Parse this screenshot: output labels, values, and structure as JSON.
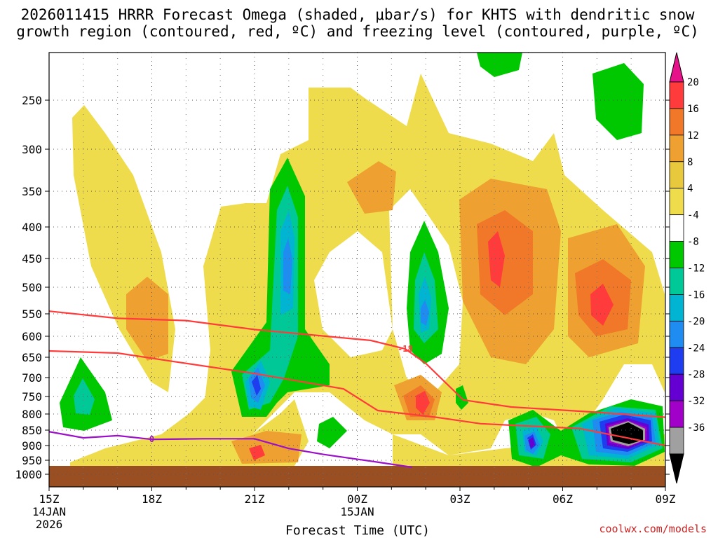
{
  "chart_data": {
    "type": "time-height-contour",
    "title_line1": "2026011415 HRRR Forecast Omega (shaded, μbar/s) for KHTS with dendritic snow",
    "title_line2": "growth region (contoured, red, ºC) and freezing level (contoured, purple, ºC)",
    "xlabel": "Forecast Time (UTC)",
    "credit": "coolwx.com/models",
    "x_hours": [
      15,
      18,
      21,
      24,
      27,
      30,
      33
    ],
    "x_ticks": [
      {
        "hour": 15,
        "label": "15Z",
        "sub1": "14JAN",
        "sub2": "2026"
      },
      {
        "hour": 18,
        "label": "18Z",
        "sub1": "",
        "sub2": ""
      },
      {
        "hour": 21,
        "label": "21Z",
        "sub1": "",
        "sub2": ""
      },
      {
        "hour": 24,
        "label": "00Z",
        "sub1": "15JAN",
        "sub2": ""
      },
      {
        "hour": 27,
        "label": "03Z",
        "sub1": "",
        "sub2": ""
      },
      {
        "hour": 30,
        "label": "06Z",
        "sub1": "",
        "sub2": ""
      },
      {
        "hour": 33,
        "label": "09Z",
        "sub1": "",
        "sub2": ""
      }
    ],
    "y_levels": [
      250,
      300,
      350,
      400,
      450,
      500,
      550,
      600,
      650,
      700,
      750,
      800,
      850,
      900,
      950,
      1000
    ],
    "y_labels": [
      "250",
      "300",
      "350",
      "400",
      "450",
      "500",
      "550",
      "600",
      "650",
      "700",
      "750",
      "800",
      "850",
      "900",
      "950",
      "1000"
    ],
    "ylim": [
      200,
      1000
    ],
    "xlim": [
      15,
      33
    ],
    "surface_pressure": 970,
    "colorbar": {
      "labels": [
        "20",
        "16",
        "12",
        "8",
        "4",
        "-4",
        "-8",
        "-12",
        "-16",
        "-20",
        "-24",
        "-28",
        "-32",
        "-36"
      ],
      "colors": [
        "#e6128a",
        "#ff3b3b",
        "#f07828",
        "#eea030",
        "#e8c83c",
        "#eedc4c",
        "#ffffff",
        "#00c800",
        "#00c896",
        "#00b4d2",
        "#1e8cf0",
        "#1e3cf0",
        "#6400d2",
        "#a000c8",
        "#a0a0a0",
        "#000000"
      ]
    },
    "omega_regions": [
      {
        "name": "eastern-updraft-core",
        "level": "-36",
        "color": "#000000",
        "center_hour": 32.9,
        "center_p": 890,
        "note": "strongest ascent near 08Z-09Z, 850-900 mb"
      },
      {
        "name": "afternoon-updraft",
        "level": "-20",
        "color": "#1e3cf0",
        "center_hour": 22.8,
        "center_p": 640,
        "note": "ascent column 21Z-23Z, 350-750 mb"
      },
      {
        "name": "night-updraft",
        "level": "-16",
        "color": "#1e8cf0",
        "center_hour": 26.9,
        "center_p": 550,
        "note": "ascent column near 02Z"
      },
      {
        "name": "descent-maximum",
        "level": "16",
        "color": "#ff3b3b",
        "center_hour": 28.9,
        "center_p": 425,
        "note": "sinking motion near 04Z, 400-450 mb"
      }
    ],
    "dgz_contours": [
      {
        "value": -18,
        "label": "-18",
        "points": [
          [
            15,
            545
          ],
          [
            17,
            560
          ],
          [
            19,
            565
          ],
          [
            21,
            585
          ],
          [
            24.4,
            610
          ],
          [
            25.4,
            630
          ],
          [
            26,
            665
          ],
          [
            27.1,
            760
          ],
          [
            28.5,
            780
          ],
          [
            31,
            795
          ],
          [
            33,
            810
          ]
        ]
      },
      {
        "value": -12,
        "label": "",
        "points": [
          [
            15,
            635
          ],
          [
            17,
            640
          ],
          [
            18.6,
            660
          ],
          [
            21,
            690
          ],
          [
            23.6,
            730
          ],
          [
            24.6,
            790
          ],
          [
            26.3,
            810
          ],
          [
            27.6,
            830
          ],
          [
            30.5,
            845
          ],
          [
            33,
            900
          ]
        ]
      }
    ],
    "freezing_level": {
      "value": 0,
      "label": "0",
      "points": [
        [
          15,
          855
        ],
        [
          16,
          875
        ],
        [
          17,
          868
        ],
        [
          18,
          880
        ],
        [
          19.5,
          878
        ],
        [
          21,
          878
        ],
        [
          22,
          910
        ],
        [
          23,
          930
        ],
        [
          24.5,
          955
        ],
        [
          25.6,
          975
        ]
      ]
    }
  }
}
